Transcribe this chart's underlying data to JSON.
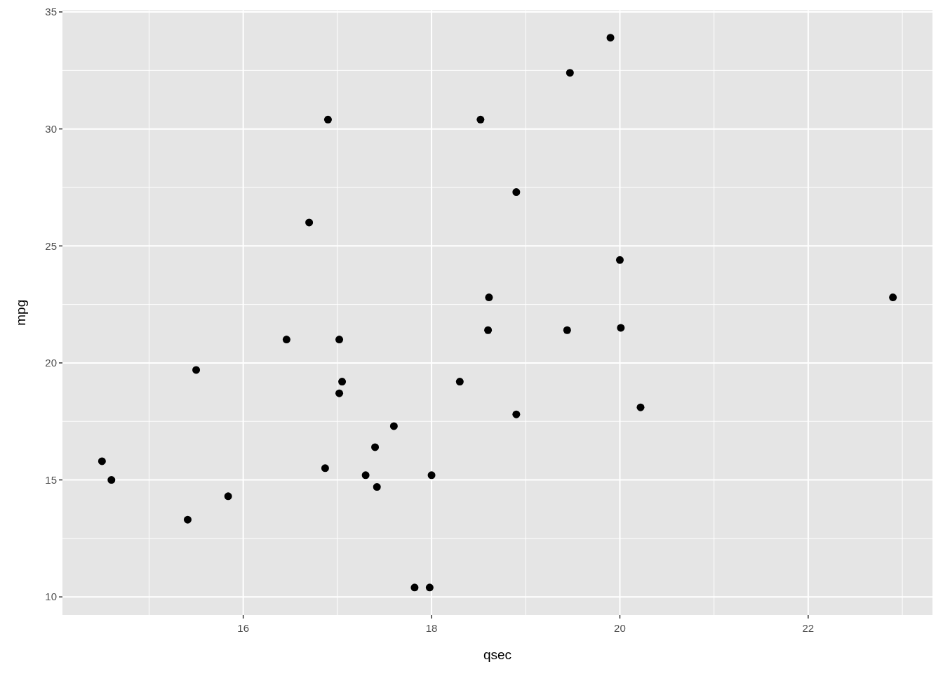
{
  "chart_data": {
    "type": "scatter",
    "xlabel": "qsec",
    "ylabel": "mpg",
    "x": [
      16.46,
      17.02,
      18.61,
      19.44,
      17.02,
      20.22,
      15.84,
      20.0,
      22.9,
      18.3,
      18.9,
      17.4,
      17.6,
      18.0,
      17.98,
      17.82,
      17.42,
      19.47,
      18.52,
      19.9,
      20.01,
      16.87,
      17.3,
      15.41,
      17.05,
      18.9,
      16.7,
      16.9,
      14.5,
      15.5,
      14.6,
      18.6
    ],
    "values": [
      21.0,
      21.0,
      22.8,
      21.4,
      18.7,
      18.1,
      14.3,
      24.4,
      22.8,
      19.2,
      17.8,
      16.4,
      17.3,
      15.2,
      10.4,
      10.4,
      14.7,
      32.4,
      30.4,
      33.9,
      21.5,
      15.5,
      15.2,
      13.3,
      19.2,
      27.3,
      26.0,
      30.4,
      15.8,
      19.7,
      15.0,
      21.4
    ],
    "color": "#000000",
    "marker": "circle",
    "xlim": [
      14.08,
      23.32
    ],
    "ylim": [
      9.225,
      35.075
    ],
    "xticks": [
      16,
      18,
      20,
      22
    ],
    "yticks": [
      10,
      15,
      20,
      25,
      30,
      35
    ],
    "grid": true
  }
}
